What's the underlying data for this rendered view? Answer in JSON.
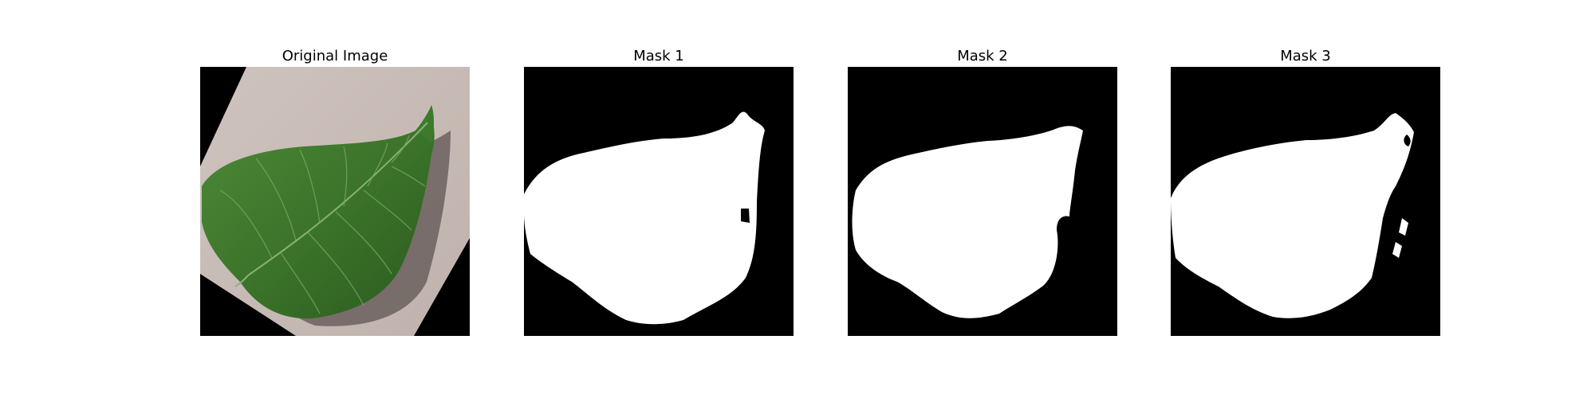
{
  "figure": {
    "panels": [
      {
        "title": "Original Image",
        "kind": "photo"
      },
      {
        "title": "Mask 1",
        "kind": "mask"
      },
      {
        "title": "Mask 2",
        "kind": "mask"
      },
      {
        "title": "Mask 3",
        "kind": "mask"
      }
    ],
    "colors": {
      "background": "#000000",
      "mask_foreground": "#ffffff",
      "paper": "#c9bcb7",
      "leaf": "#3f7a2f"
    }
  }
}
